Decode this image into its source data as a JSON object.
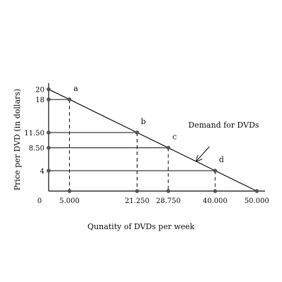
{
  "chart_data": {
    "type": "line",
    "xlabel": "Qunatity of DVDs per week",
    "ylabel": "Price per DVD (in dollars)",
    "xlim": [
      0,
      52000
    ],
    "ylim": [
      0,
      21.2
    ],
    "origin_label": "0",
    "x_ticks": [
      {
        "value": 5000,
        "label": "5.000"
      },
      {
        "value": 21250,
        "label": "21.250"
      },
      {
        "value": 28750,
        "label": "28.750"
      },
      {
        "value": 40000,
        "label": "40.000"
      },
      {
        "value": 50000,
        "label": "50.000"
      }
    ],
    "y_ticks": [
      {
        "value": 20,
        "label": "20"
      },
      {
        "value": 18,
        "label": "18"
      },
      {
        "value": 11.5,
        "label": "11.50"
      },
      {
        "value": 8.5,
        "label": "8.50"
      },
      {
        "value": 4,
        "label": "4"
      }
    ],
    "series": [
      {
        "name": "Demand for DVDs",
        "x": [
          0,
          5000,
          21250,
          28750,
          40000,
          50000
        ],
        "y": [
          20,
          18,
          11.5,
          8.5,
          4,
          0
        ]
      }
    ],
    "points": [
      {
        "label": "a",
        "x": 5000,
        "y": 18
      },
      {
        "label": "b",
        "x": 21250,
        "y": 11.5
      },
      {
        "label": "c",
        "x": 28750,
        "y": 8.5
      },
      {
        "label": "d",
        "x": 40000,
        "y": 4
      }
    ],
    "annotation": {
      "text": "Demand for DVDs",
      "arrow_target": [
        35500,
        5.9
      ]
    },
    "colors": {
      "line": "#111111",
      "marker": "#555555"
    }
  }
}
